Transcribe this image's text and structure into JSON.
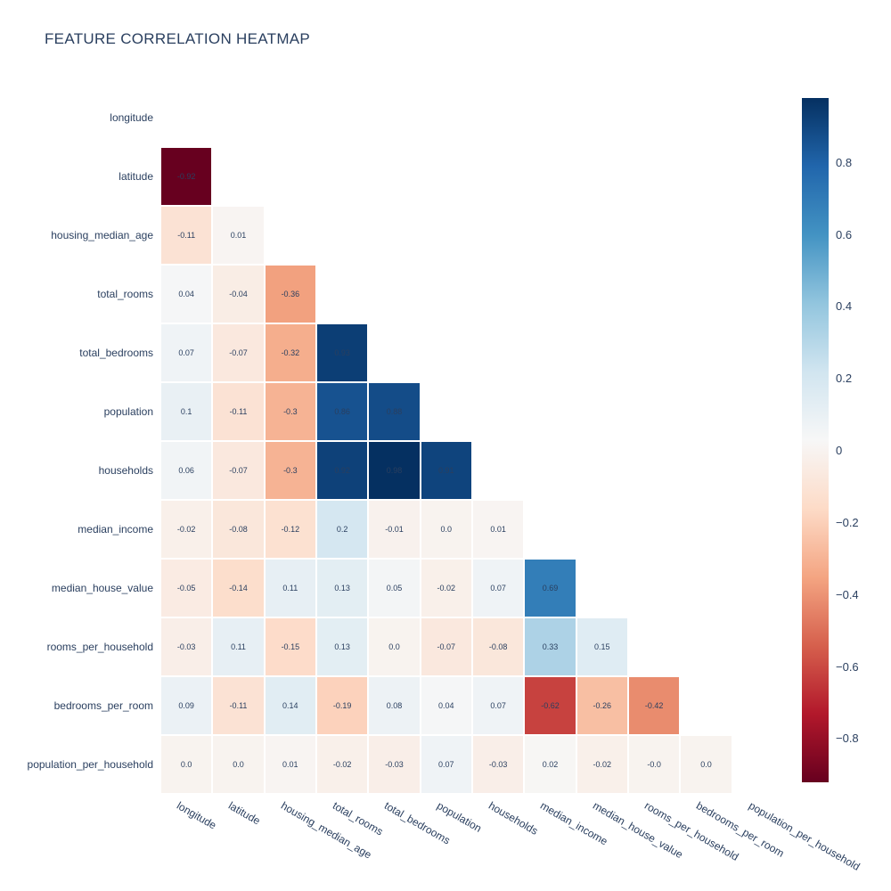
{
  "page": {
    "background": "#ffffff"
  },
  "chart_data": {
    "type": "heatmap",
    "title": "FEATURE CORRELATION HEATMAP",
    "features": [
      "longitude",
      "latitude",
      "housing_median_age",
      "total_rooms",
      "total_bedrooms",
      "population",
      "households",
      "median_income",
      "median_house_value",
      "rooms_per_household",
      "bedrooms_per_room",
      "population_per_household"
    ],
    "mask": "strict-lower-triangle",
    "matrix_lower_triangle": [
      [],
      [
        "-0.92"
      ],
      [
        "-0.11",
        "0.01"
      ],
      [
        "0.04",
        "-0.04",
        "-0.36"
      ],
      [
        "0.07",
        "-0.07",
        "-0.32",
        "0.93"
      ],
      [
        "0.1",
        "-0.11",
        "-0.3",
        "0.86",
        "0.88"
      ],
      [
        "0.06",
        "-0.07",
        "-0.3",
        "0.92",
        "0.98",
        "0.91"
      ],
      [
        "-0.02",
        "-0.08",
        "-0.12",
        "0.2",
        "-0.01",
        "0.0",
        "0.01"
      ],
      [
        "-0.05",
        "-0.14",
        "0.11",
        "0.13",
        "0.05",
        "-0.02",
        "0.07",
        "0.69"
      ],
      [
        "-0.03",
        "0.11",
        "-0.15",
        "0.13",
        "0.0",
        "-0.07",
        "-0.08",
        "0.33",
        "0.15"
      ],
      [
        "0.09",
        "-0.11",
        "0.14",
        "-0.19",
        "0.08",
        "0.04",
        "0.07",
        "-0.62",
        "-0.26",
        "-0.42"
      ],
      [
        "0.0",
        "0.0",
        "0.01",
        "-0.02",
        "-0.03",
        "0.07",
        "-0.03",
        "0.02",
        "-0.02",
        "-0.0",
        "0.0"
      ]
    ],
    "zmin": -0.92,
    "zmax": 0.98,
    "x_tick_angle_deg": 30,
    "colorscale": {
      "name": "RdBu",
      "stops": [
        "#67001f",
        "#b2182b",
        "#d6604d",
        "#f4a582",
        "#fddbc7",
        "#f7f7f7",
        "#d1e5f0",
        "#92c5de",
        "#4393c3",
        "#2166ac",
        "#053061"
      ]
    },
    "colorbar": {
      "tick_labels": [
        "0.8",
        "0.6",
        "0.4",
        "0.2",
        "0",
        "−0.2",
        "−0.4",
        "−0.6",
        "−0.8"
      ],
      "tick_values": [
        0.8,
        0.6,
        0.4,
        0.2,
        0,
        -0.2,
        -0.4,
        -0.6,
        -0.8
      ]
    },
    "styles": {
      "title_color": "#2a3f5f",
      "label_color": "#2a3f5f",
      "cell_text_color": "#2a3f5f",
      "background": "#ffffff"
    }
  }
}
